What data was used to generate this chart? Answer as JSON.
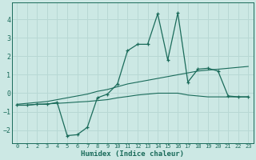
{
  "xlabel": "Humidex (Indice chaleur)",
  "bg_color": "#cce8e4",
  "grid_color": "#b8d8d4",
  "line_color": "#1a6b5a",
  "x_data": [
    0,
    1,
    2,
    3,
    4,
    5,
    6,
    7,
    8,
    9,
    10,
    11,
    12,
    13,
    14,
    15,
    16,
    17,
    18,
    19,
    20,
    21,
    22,
    23
  ],
  "y_curve": [
    -0.65,
    -0.65,
    -0.6,
    -0.6,
    -0.5,
    -2.3,
    -2.25,
    -1.85,
    -0.25,
    -0.05,
    0.5,
    2.3,
    2.65,
    2.65,
    4.3,
    1.8,
    4.35,
    0.6,
    1.3,
    1.35,
    1.2,
    -0.15,
    -0.2,
    -0.2
  ],
  "y_line_flat": [
    -0.65,
    -0.65,
    -0.6,
    -0.58,
    -0.55,
    -0.52,
    -0.48,
    -0.45,
    -0.4,
    -0.35,
    -0.25,
    -0.18,
    -0.1,
    -0.05,
    0.0,
    0.0,
    0.0,
    -0.1,
    -0.15,
    -0.2,
    -0.2,
    -0.2,
    -0.2,
    -0.2
  ],
  "y_line_steep": [
    -0.6,
    -0.55,
    -0.5,
    -0.45,
    -0.35,
    -0.25,
    -0.15,
    -0.05,
    0.1,
    0.2,
    0.35,
    0.5,
    0.6,
    0.7,
    0.8,
    0.9,
    1.0,
    1.1,
    1.2,
    1.25,
    1.3,
    1.35,
    1.4,
    1.45
  ],
  "ylim": [
    -2.7,
    4.9
  ],
  "xlim": [
    -0.5,
    23.5
  ],
  "yticks": [
    -2,
    -1,
    0,
    1,
    2,
    3,
    4
  ],
  "xticks": [
    0,
    1,
    2,
    3,
    4,
    5,
    6,
    7,
    8,
    9,
    10,
    11,
    12,
    13,
    14,
    15,
    16,
    17,
    18,
    19,
    20,
    21,
    22,
    23
  ]
}
